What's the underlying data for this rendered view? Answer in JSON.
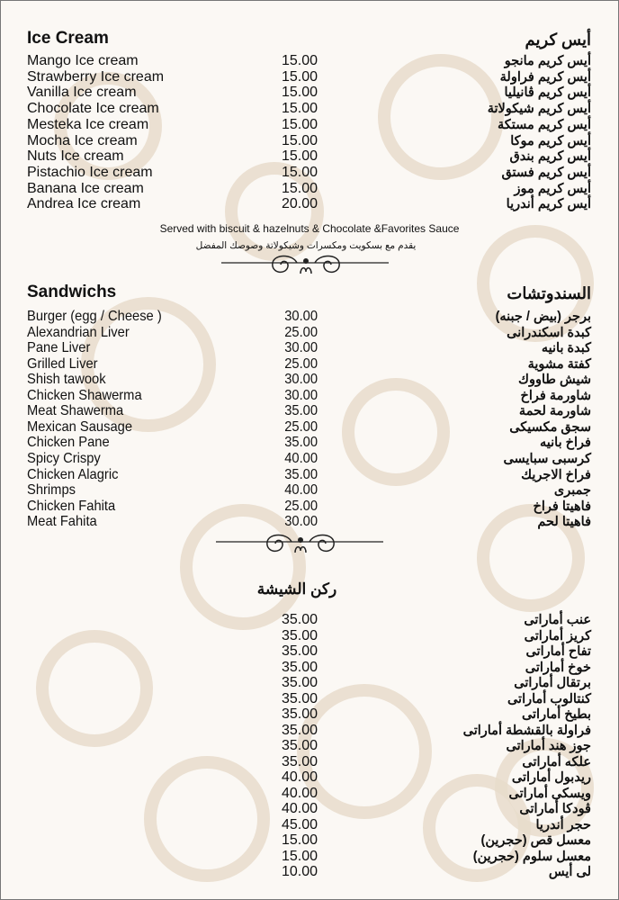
{
  "ice_cream": {
    "title_en": "Ice Cream",
    "title_ar": "أيس كريم",
    "items": [
      {
        "en": "Mango Ice cream",
        "price": "15.00",
        "ar": "أيس كريم مانجو"
      },
      {
        "en": "Strawberry Ice cream",
        "price": "15.00",
        "ar": "أيس كريم فراولة"
      },
      {
        "en": "Vanilla Ice cream",
        "price": "15.00",
        "ar": "أيس كريم ڤانيليا"
      },
      {
        "en": "Chocolate Ice cream",
        "price": "15.00",
        "ar": "أيس كريم شيكولاتة"
      },
      {
        "en": "Mesteka Ice cream",
        "price": "15.00",
        "ar": "أيس كريم مستكة"
      },
      {
        "en": "Mocha Ice cream",
        "price": "15.00",
        "ar": "أيس كريم موكا"
      },
      {
        "en": "Nuts Ice cream",
        "price": "15.00",
        "ar": "أيس كريم بندق"
      },
      {
        "en": "Pistachio Ice cream",
        "price": "15.00",
        "ar": "أيس كريم فستق"
      },
      {
        "en": "Banana Ice cream",
        "price": "15.00",
        "ar": "أيس كريم موز"
      },
      {
        "en": "Andrea Ice cream",
        "price": "20.00",
        "ar": "أيس كريم أندريا"
      }
    ],
    "note_en": "Served with biscuit & hazelnuts & Chocolate &Favorites Sauce",
    "note_ar": "يقدم مع بسكويت ومكسرات وشيكولاتة وصوصك المفضل"
  },
  "sandwiches": {
    "title_en": "Sandwichs",
    "title_ar": "السندوتشات",
    "items": [
      {
        "en": "Burger (egg / Cheese )",
        "price": "30.00",
        "ar": "برجر (بيض / جبنه)"
      },
      {
        "en": "Alexandrian Liver",
        "price": "25.00",
        "ar": "كبدة اسكندرانى"
      },
      {
        "en": "Pane Liver",
        "price": "30.00",
        "ar": "كبدة بانيه"
      },
      {
        "en": "Grilled Liver",
        "price": "25.00",
        "ar": "كفتة مشوية"
      },
      {
        "en": "Shish tawook",
        "price": "30.00",
        "ar": "شيش طاووك"
      },
      {
        "en": "Chicken Shawerma",
        "price": "30.00",
        "ar": "شاورمة فراخ"
      },
      {
        "en": "Meat Shawerma",
        "price": "35.00",
        "ar": "شاورمة لحمة"
      },
      {
        "en": "Mexican Sausage",
        "price": "25.00",
        "ar": "سجق مكسيكى"
      },
      {
        "en": "Chicken Pane",
        "price": "35.00",
        "ar": "فراخ بانيه"
      },
      {
        "en": "Spicy Crispy",
        "price": "40.00",
        "ar": "كرسبى سبايسى"
      },
      {
        "en": "Chicken Alagric",
        "price": "35.00",
        "ar": "فراخ الاجريك"
      },
      {
        "en": "Shrimps",
        "price": "40.00",
        "ar": "جمبرى"
      },
      {
        "en": "Chicken Fahita",
        "price": "25.00",
        "ar": "فاهيتا فراخ"
      },
      {
        "en": "Meat Fahita",
        "price": "30.00",
        "ar": "فاهيتا لحم"
      }
    ]
  },
  "shisha": {
    "title_ar": "ركن الشيشة",
    "items": [
      {
        "en": "",
        "price": "35.00",
        "ar": "عنب أماراتى"
      },
      {
        "en": "",
        "price": "35.00",
        "ar": "كريز أماراتى"
      },
      {
        "en": "",
        "price": "35.00",
        "ar": "تفاح أماراتى"
      },
      {
        "en": "",
        "price": "35.00",
        "ar": "خوخ أماراتى"
      },
      {
        "en": "",
        "price": "35.00",
        "ar": "برتقال أماراتى"
      },
      {
        "en": "",
        "price": "35.00",
        "ar": "كنتالوب أماراتى"
      },
      {
        "en": "",
        "price": "35.00",
        "ar": "بطيخ أماراتى"
      },
      {
        "en": "",
        "price": "35.00",
        "ar": "فراولة بالقشطة أماراتى"
      },
      {
        "en": "",
        "price": "35.00",
        "ar": "جوز هند أماراتى"
      },
      {
        "en": "",
        "price": "35.00",
        "ar": "علكه أماراتى"
      },
      {
        "en": "",
        "price": "40.00",
        "ar": "ريدبول أماراتى"
      },
      {
        "en": "",
        "price": "40.00",
        "ar": "ويسكى أماراتى"
      },
      {
        "en": "",
        "price": "40.00",
        "ar": "ڤودكا أماراتى"
      },
      {
        "en": "",
        "price": "45.00",
        "ar": "حجر أندريا"
      },
      {
        "en": "",
        "price": "15.00",
        "ar": "معسل قص (حجرين)"
      },
      {
        "en": "",
        "price": "15.00",
        "ar": "معسل سلوم (حجرين)"
      },
      {
        "en": "",
        "price": "10.00",
        "ar": "لى أيس"
      }
    ]
  },
  "colors": {
    "background": "#fbf8f4",
    "pattern": "#e8dccb",
    "text": "#111111"
  }
}
